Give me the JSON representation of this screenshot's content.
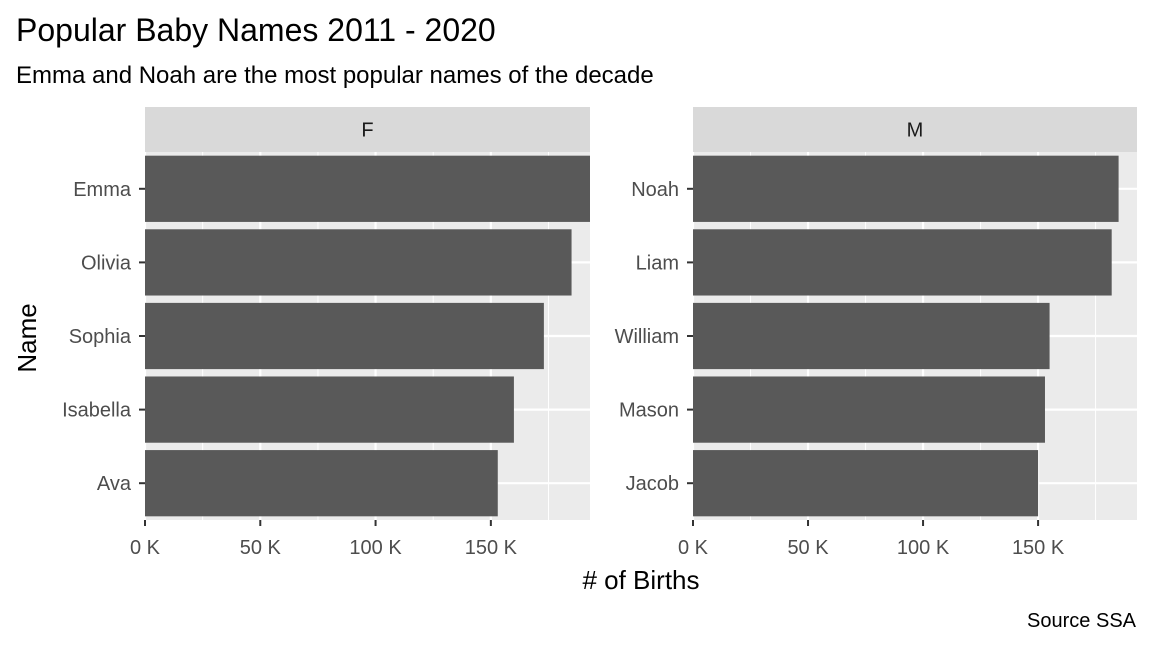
{
  "chart_data": {
    "type": "bar",
    "orientation": "horizontal",
    "title": "Popular Baby Names 2011 - 2020",
    "subtitle": "Emma and Noah are the most popular names of the decade",
    "xlabel": "# of Births",
    "ylabel": "Name",
    "caption": "Source SSA",
    "xlim": [
      0,
      193000
    ],
    "x_ticks": [
      0,
      50000,
      100000,
      150000
    ],
    "x_tick_labels": [
      "0 K",
      "50 K",
      "100 K",
      "150 K"
    ],
    "grid": true,
    "legend": "none",
    "colors": {
      "bar": "#595959",
      "panel_bg": "#ebebeb",
      "strip_bg": "#d9d9d9",
      "grid": "#ffffff"
    },
    "panels": [
      {
        "label": "F",
        "categories": [
          "Emma",
          "Olivia",
          "Sophia",
          "Isabella",
          "Ava"
        ],
        "values": [
          193000,
          185000,
          173000,
          160000,
          153000
        ]
      },
      {
        "label": "M",
        "categories": [
          "Noah",
          "Liam",
          "William",
          "Mason",
          "Jacob"
        ],
        "values": [
          185000,
          182000,
          155000,
          153000,
          150000
        ]
      }
    ]
  }
}
